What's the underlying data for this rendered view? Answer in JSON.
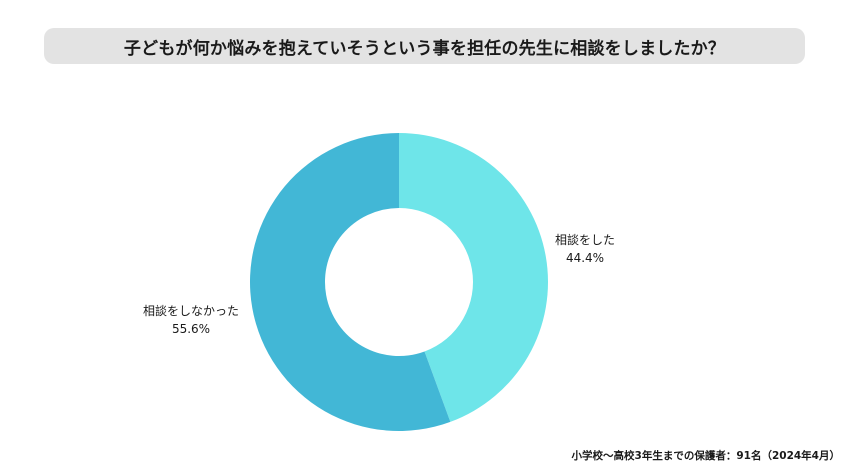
{
  "title": "子どもが何か悩みを抱えていそうという事を担任の先生に相談をしましたか？",
  "footnote": "小学校～高校3年生までの保護者：91名（2024年4月）",
  "chart_data": {
    "type": "pie",
    "variant": "donut",
    "slices": [
      {
        "label": "相談をした",
        "value": 44.4,
        "display": "44.4%",
        "color": "#6ee5e9"
      },
      {
        "label": "相談をしなかった",
        "value": 55.6,
        "display": "55.6%",
        "color": "#42b7d6"
      }
    ],
    "start": "12 o'clock",
    "direction": "clockwise",
    "legend": "none"
  }
}
